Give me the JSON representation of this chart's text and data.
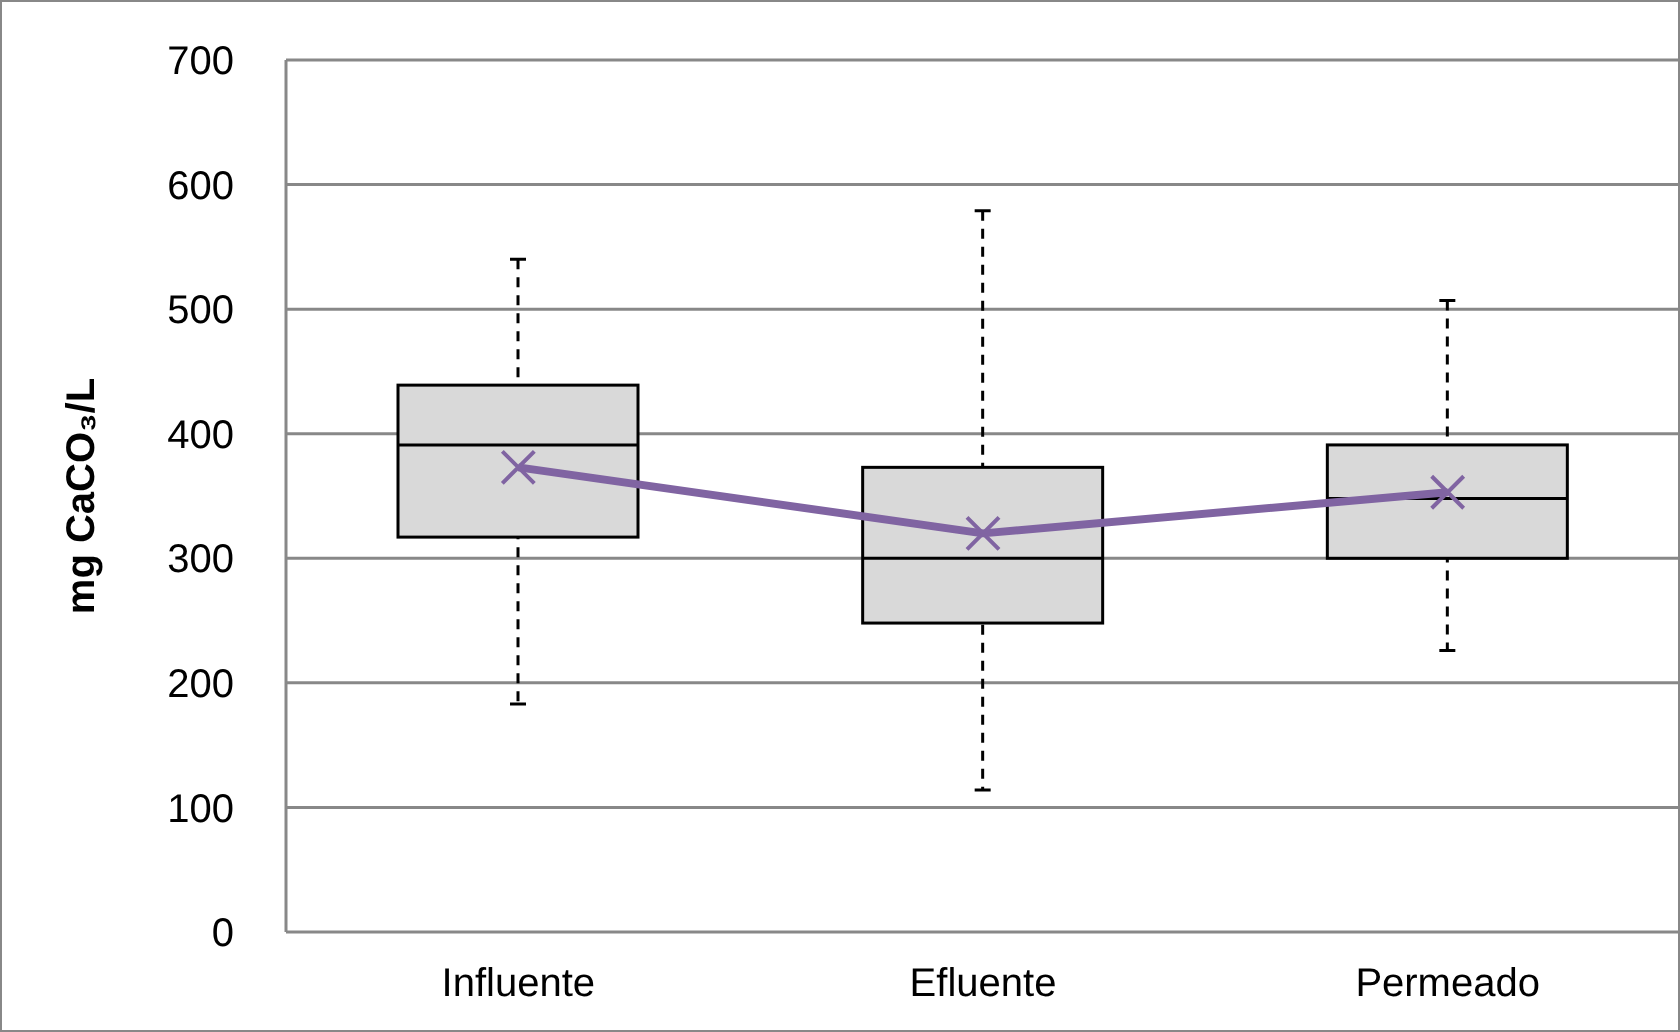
{
  "chart_data": {
    "type": "box",
    "categories": [
      "Influente",
      "Efluente",
      "Permeado"
    ],
    "ylabel": "mg CaCO₃/L",
    "ylim": [
      0,
      700
    ],
    "yticks": [
      0,
      100,
      200,
      300,
      400,
      500,
      600,
      700
    ],
    "grid": "y",
    "series": [
      {
        "type": "box",
        "color": "#d9d9d9",
        "boxes": [
          {
            "low": 183,
            "q1": 317,
            "median": 391,
            "q3": 439,
            "high": 540
          },
          {
            "low": 114,
            "q1": 248,
            "median": 300,
            "q3": 373,
            "high": 579
          },
          {
            "low": 226,
            "q1": 300,
            "median": 348,
            "q3": 391,
            "high": 507
          }
        ]
      },
      {
        "type": "line",
        "color": "#8064a2",
        "values": [
          373,
          320,
          353
        ]
      }
    ],
    "marker": "cross"
  }
}
